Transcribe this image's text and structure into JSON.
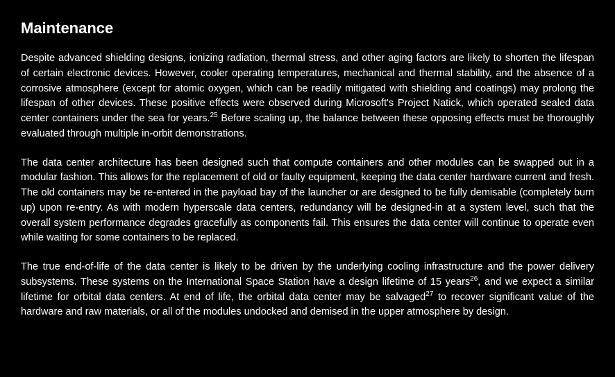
{
  "document": {
    "heading": "Maintenance",
    "background_color": "#000000",
    "text_color": "#ffffff",
    "heading_fontsize": 22,
    "body_fontsize": 14.5,
    "line_height": 1.5,
    "text_align": "justify",
    "paragraphs": [
      {
        "segments": [
          {
            "text": "Despite advanced shielding designs, ionizing radiation, thermal stress, and other aging factors are likely to shorten the lifespan of certain electronic devices. However, cooler operating temperatures, mechanical and thermal stability, and the absence of a corrosive atmosphere (except for atomic oxygen, which can be readily mitigated with shielding and coatings) may prolong the lifespan of other devices. These positive effects were observed during Microsoft's Project Natick, which operated sealed data center containers under the sea for years."
          },
          {
            "text": "25",
            "sup": true
          },
          {
            "text": " Before scaling up, the balance between these opposing effects must be thoroughly evaluated through multiple in-orbit demonstrations."
          }
        ]
      },
      {
        "segments": [
          {
            "text": "The data center architecture has been designed such that compute containers and other modules can be swapped out in a modular fashion. This allows for the replacement of old or faulty equipment, keeping the data center hardware current and fresh. The old containers may be re-entered in the payload bay of the launcher or are designed to be fully demisable (completely burn up) upon re-entry. As with modern hyperscale data centers, redundancy will be designed-in at a system level, such that the overall system performance degrades gracefully as components fail. This ensures the data center will continue to operate even while waiting for some containers to be replaced."
          }
        ]
      },
      {
        "segments": [
          {
            "text": "The true end-of-life of the data center is likely to be driven by the underlying cooling infrastructure and the power delivery subsystems. These systems on the International Space Station have a design lifetime of 15 years"
          },
          {
            "text": "26",
            "sup": true
          },
          {
            "text": ", and we expect a similar lifetime for orbital data centers. At end of life, the orbital data center may be salvaged"
          },
          {
            "text": "27",
            "sup": true
          },
          {
            "text": " to recover significant value of the hardware and raw materials, or all of the modules undocked and demised in the upper atmosphere by design."
          }
        ]
      }
    ]
  }
}
